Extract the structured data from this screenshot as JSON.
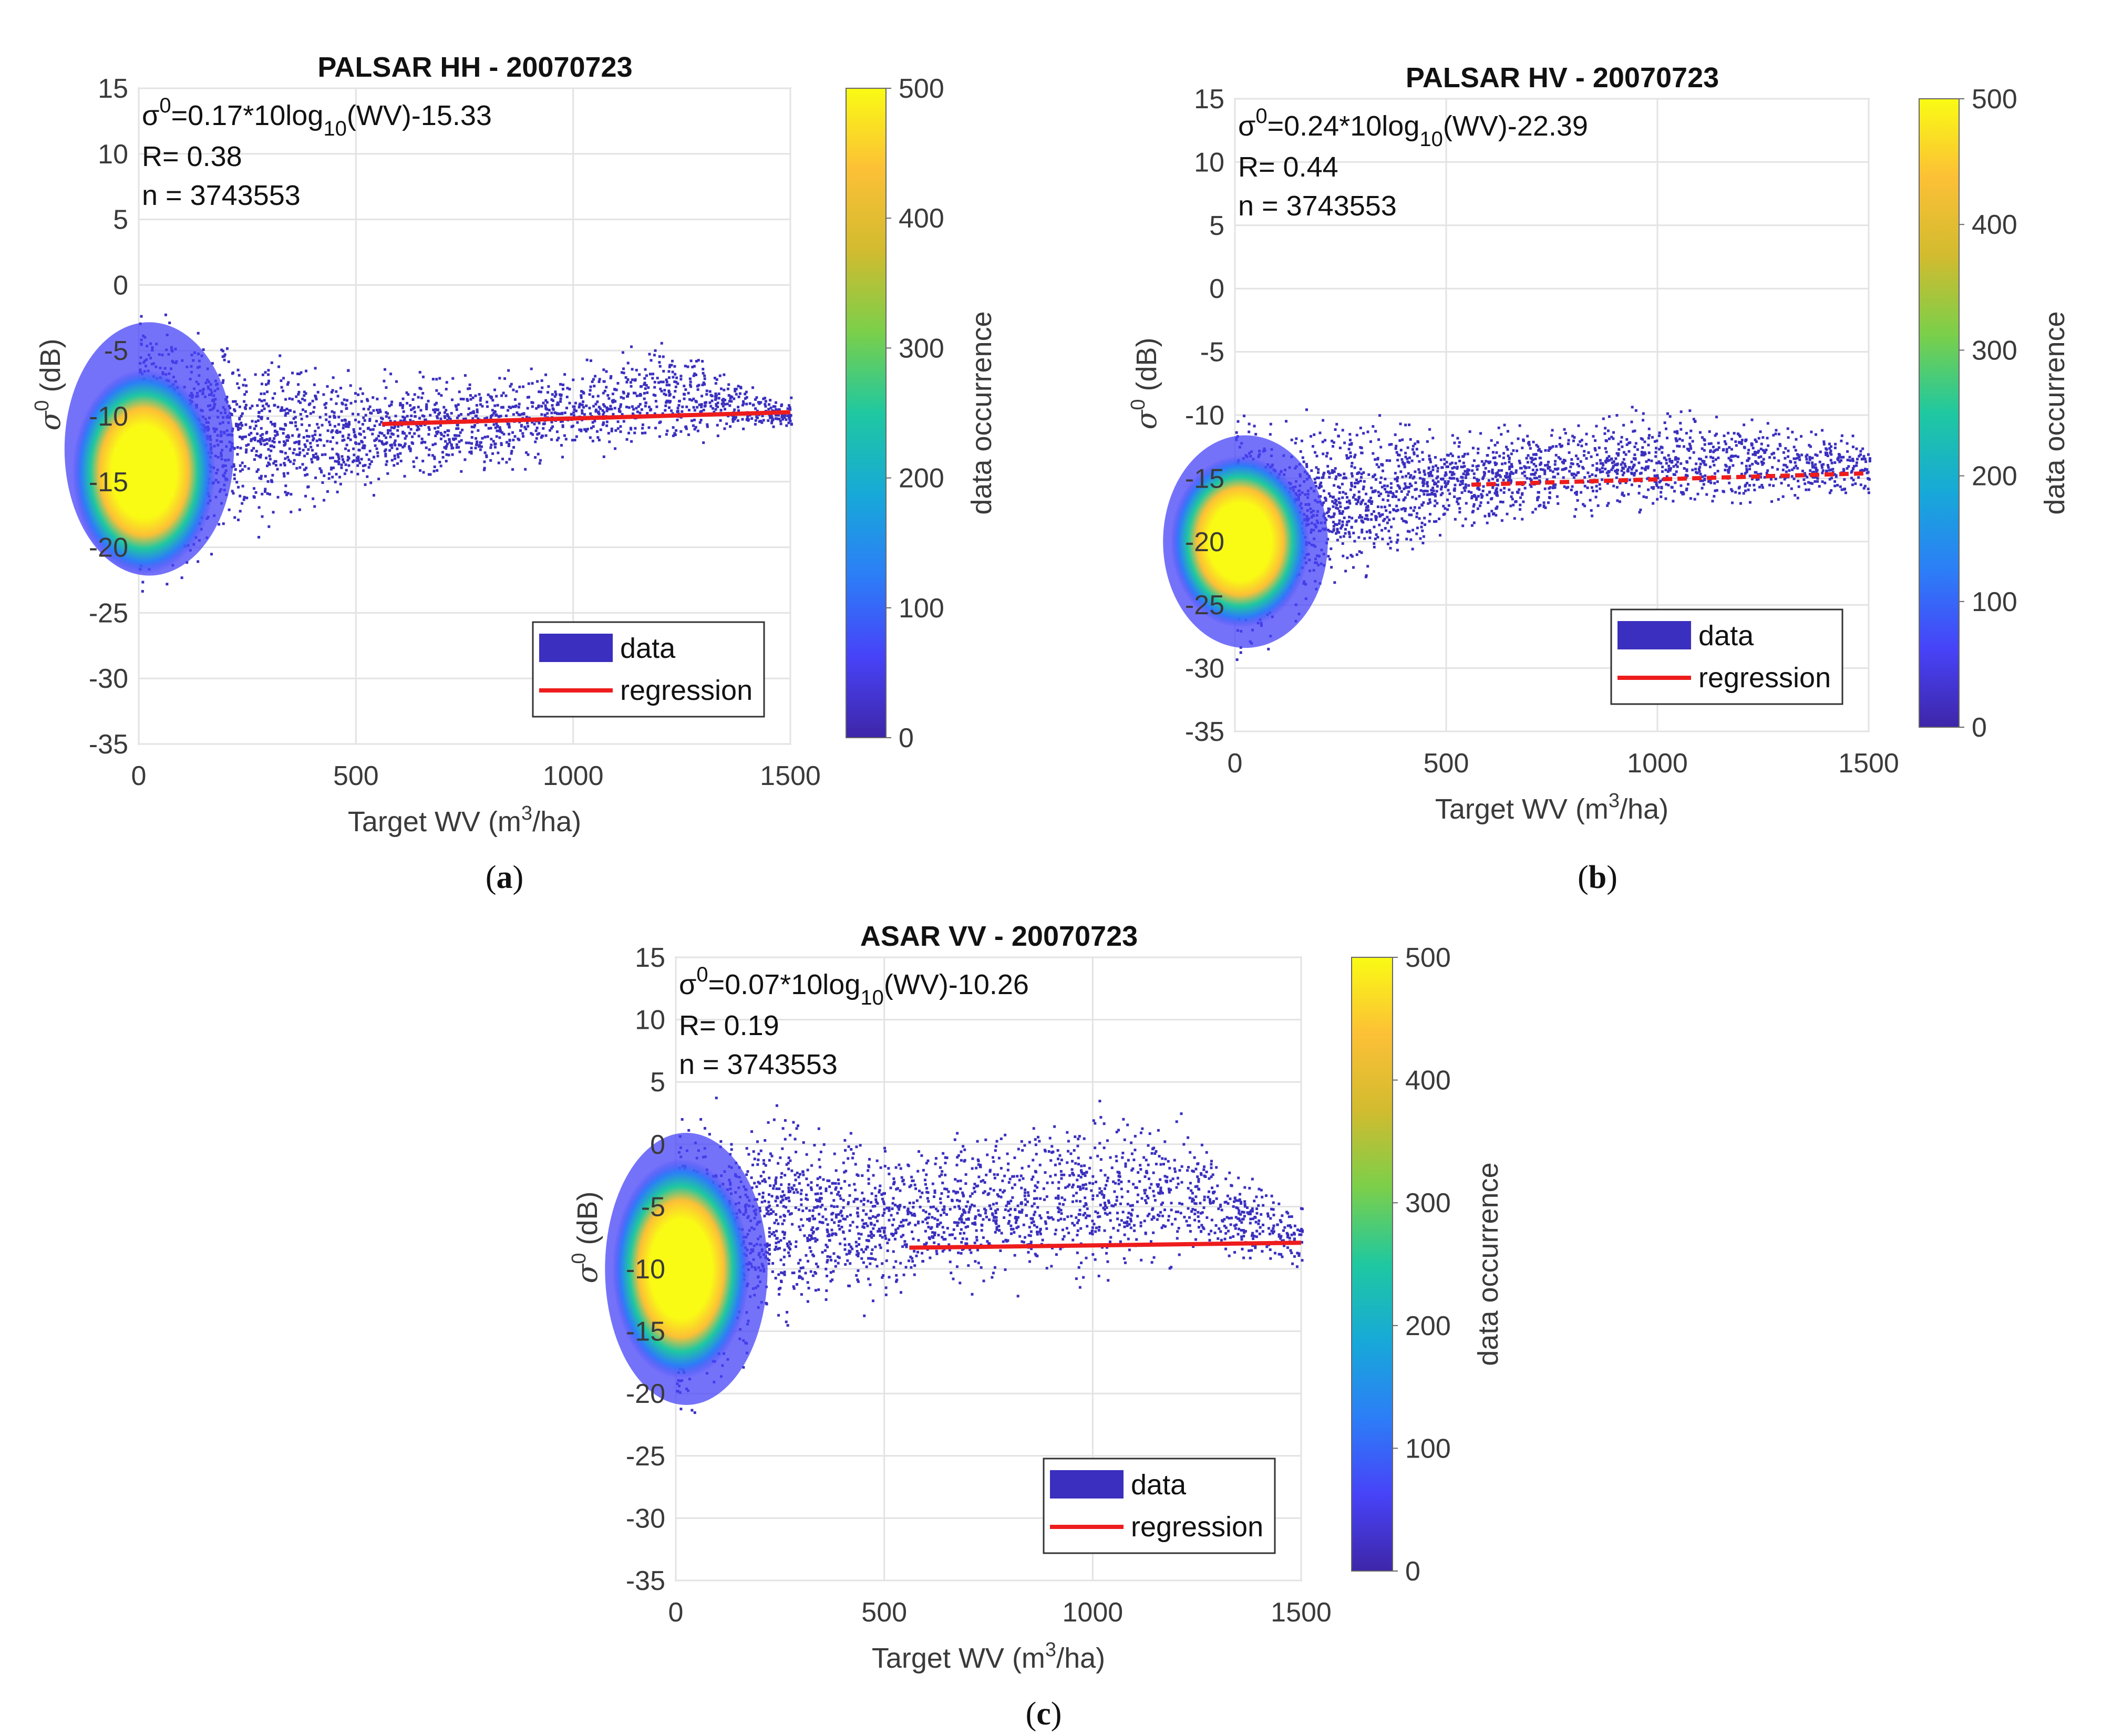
{
  "palette": {
    "scatter": "#3a2fbf",
    "regression": "#ee1c1c",
    "colormap": [
      "#3e26a8",
      "#4743f8",
      "#2c7ef7",
      "#17a9d8",
      "#1fc8a0",
      "#7bcf4a",
      "#d2bb2f",
      "#fcc036",
      "#f9fb14"
    ]
  },
  "chart_data": [
    {
      "type": "scatter",
      "panel_label": [
        "(",
        "a",
        ")"
      ],
      "title": "PALSAR HH - 20070723",
      "equation": {
        "lead": "σ",
        "sup": "0",
        "mid": "=0.17*10log",
        "sub": "10",
        "tail": "(WV)-15.33"
      },
      "stats": [
        "R= 0.38",
        "n = 3743553"
      ],
      "xlabel": {
        "pre": "Target WV (m",
        "sup": "3",
        "post": "/ha)"
      },
      "ylabel": {
        "base": "σ",
        "sup": "0",
        "post": " (dB)"
      },
      "xlim": [
        0,
        1500
      ],
      "ylim": [
        -35,
        15
      ],
      "xticks": [
        "0",
        "500",
        "1000",
        "1500"
      ],
      "yticks": [
        "15",
        "10",
        "5",
        "0",
        "-5",
        "-10",
        "-15",
        "-20",
        "-25",
        "-30",
        "-35"
      ],
      "regression": {
        "x": [
          560,
          1500
        ],
        "y": [
          -10.6,
          -9.7
        ]
      },
      "density": {
        "core_y": -15,
        "upper_env": [
          [
            0,
            -1
          ],
          [
            250,
            -4
          ],
          [
            500,
            -6.5
          ],
          [
            1000,
            -6
          ],
          [
            1200,
            -4
          ],
          [
            1500,
            -8.5
          ]
        ],
        "lower_env": [
          [
            0,
            -24
          ],
          [
            250,
            -19
          ],
          [
            500,
            -16
          ],
          [
            1000,
            -13.5
          ],
          [
            1500,
            -11
          ]
        ]
      },
      "legend": [
        "data",
        "regression"
      ],
      "colorbar": {
        "label": "data occurrence",
        "ticks": [
          "500",
          "400",
          "300",
          "200",
          "100",
          "0"
        ],
        "range": [
          0,
          500
        ]
      }
    },
    {
      "type": "scatter",
      "panel_label": [
        "(",
        "b",
        ")"
      ],
      "title": "PALSAR HV - 20070723",
      "equation": {
        "lead": "σ",
        "sup": "0",
        "mid": "=0.24*10log",
        "sub": "10",
        "tail": "(WV)-22.39"
      },
      "stats": [
        "R= 0.44",
        "n = 3743553"
      ],
      "xlabel": {
        "pre": "Target WV (m",
        "sup": "3",
        "post": "/ha)"
      },
      "ylabel": {
        "base": "σ",
        "sup": "0",
        "post": " (dB)"
      },
      "xlim": [
        0,
        1500
      ],
      "ylim": [
        -35,
        15
      ],
      "xticks": [
        "0",
        "500",
        "1000",
        "1500"
      ],
      "yticks": [
        "15",
        "10",
        "5",
        "0",
        "-5",
        "-10",
        "-15",
        "-20",
        "-25",
        "-30",
        "-35"
      ],
      "regression": {
        "x": [
          560,
          1500
        ],
        "y": [
          -15.5,
          -14.6
        ]
      },
      "density": {
        "core_y": -20,
        "upper_env": [
          [
            0,
            -10
          ],
          [
            250,
            -9.5
          ],
          [
            500,
            -11
          ],
          [
            1000,
            -9
          ],
          [
            1500,
            -11.5
          ]
        ],
        "lower_env": [
          [
            0,
            -30
          ],
          [
            250,
            -24
          ],
          [
            500,
            -19
          ],
          [
            1000,
            -18
          ],
          [
            1500,
            -16.5
          ]
        ]
      },
      "legend": [
        "data",
        "regression"
      ],
      "colorbar": {
        "label": "data occurrence",
        "ticks": [
          "500",
          "400",
          "300",
          "200",
          "100",
          "0"
        ],
        "range": [
          0,
          500
        ]
      }
    },
    {
      "type": "scatter",
      "panel_label": [
        "(",
        "c",
        ")"
      ],
      "title": "ASAR VV - 20070723",
      "equation": {
        "lead": "σ",
        "sup": "0",
        "mid": "=0.07*10log",
        "sub": "10",
        "tail": "(WV)-10.26"
      },
      "stats": [
        "R= 0.19",
        "n = 3743553"
      ],
      "xlabel": {
        "pre": "Target WV (m",
        "sup": "3",
        "post": "/ha)"
      },
      "ylabel": {
        "base": "σ",
        "sup": "0",
        "post": " (dB)"
      },
      "xlim": [
        0,
        1500
      ],
      "ylim": [
        -35,
        15
      ],
      "xticks": [
        "0",
        "500",
        "1000",
        "1500"
      ],
      "yticks": [
        "15",
        "10",
        "5",
        "0",
        "-5",
        "-10",
        "-15",
        "-20",
        "-25",
        "-30",
        "-35"
      ],
      "regression": {
        "x": [
          560,
          1500
        ],
        "y": [
          -8.3,
          -7.9
        ]
      },
      "density": {
        "core_y": -10,
        "upper_env": [
          [
            0,
            3
          ],
          [
            250,
            3
          ],
          [
            500,
            1
          ],
          [
            1000,
            3
          ],
          [
            1200,
            3
          ],
          [
            1500,
            -5
          ]
        ],
        "lower_env": [
          [
            0,
            -23
          ],
          [
            250,
            -15
          ],
          [
            500,
            -12.5
          ],
          [
            1000,
            -11
          ],
          [
            1500,
            -10
          ]
        ]
      },
      "legend": [
        "data",
        "regression"
      ],
      "colorbar": {
        "label": "data occurrence",
        "ticks": [
          "500",
          "400",
          "300",
          "200",
          "100",
          "0"
        ],
        "range": [
          0,
          500
        ]
      }
    }
  ]
}
